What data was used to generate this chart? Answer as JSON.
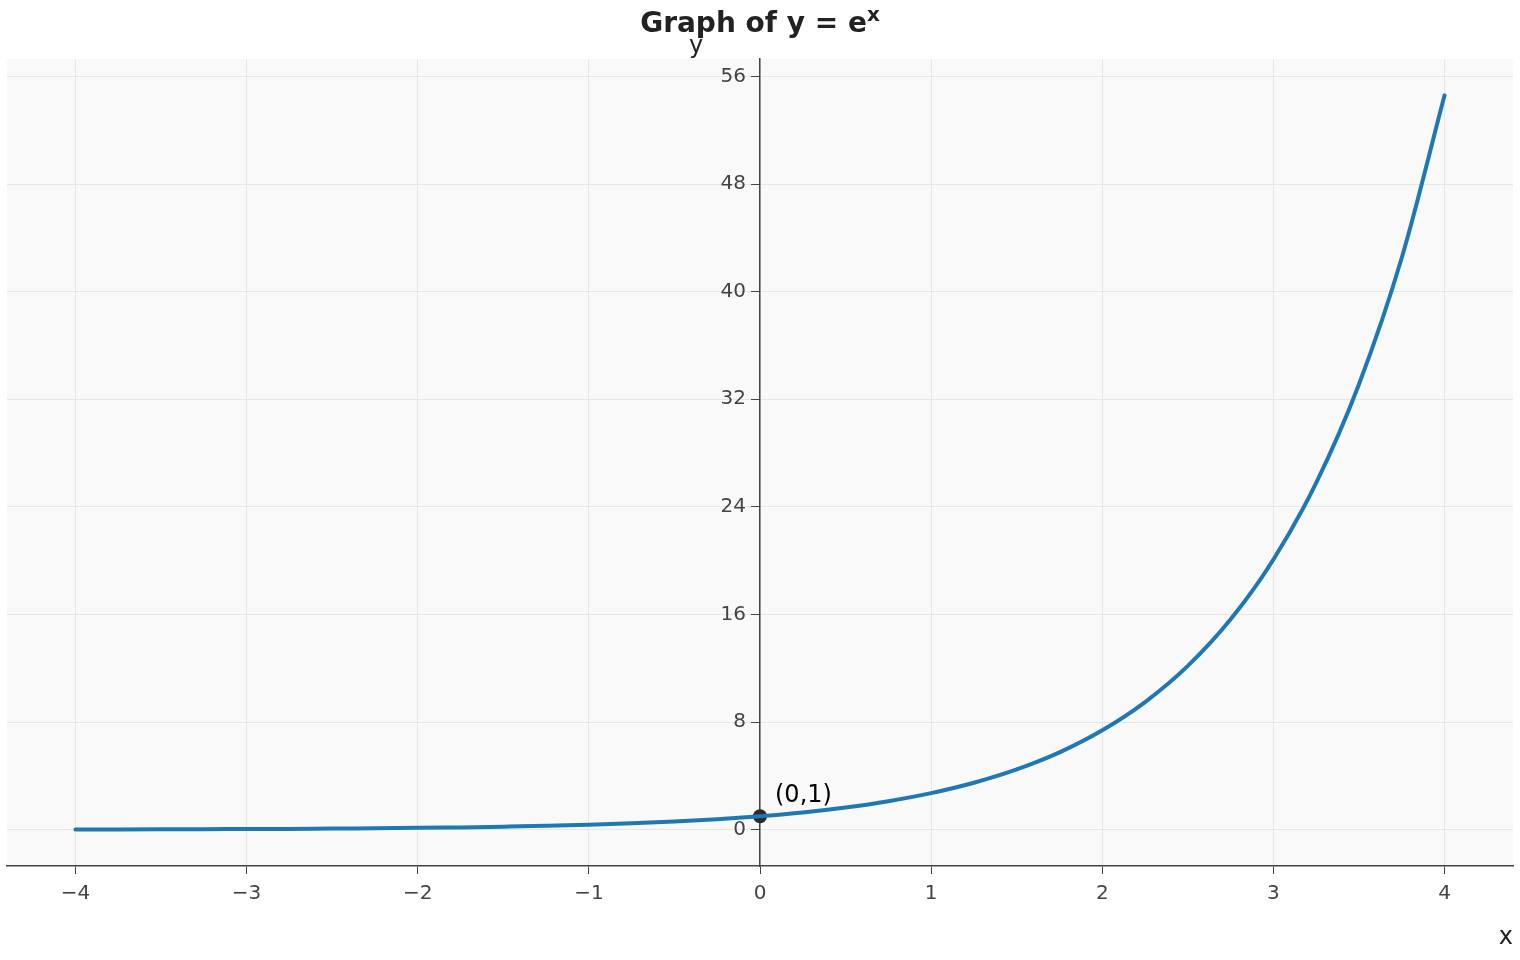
{
  "chart_data": {
    "type": "line",
    "title": "Graph of y = e$^{x}$",
    "xlabel": "x",
    "ylabel": "y",
    "xlim": [
      -4.4,
      4.4
    ],
    "ylim": [
      -2.7,
      57.3
    ],
    "xticks": [
      {
        "value": -4,
        "label": "−4"
      },
      {
        "value": -3,
        "label": "−3"
      },
      {
        "value": -2,
        "label": "−2"
      },
      {
        "value": -1,
        "label": "−1"
      },
      0,
      1,
      2,
      3,
      4
    ],
    "yticks": [
      0,
      8,
      16,
      24,
      32,
      40,
      48,
      56
    ],
    "grid": true,
    "legend": false,
    "annotations": [
      {
        "text": "(0,1)",
        "x": 0,
        "y": 1
      }
    ],
    "series": [
      {
        "type": "line",
        "color": "#1f77b4",
        "marker": "none",
        "x": [
          -4,
          -3.75,
          -3.5,
          -3.25,
          -3,
          -2.75,
          -2.5,
          -2.25,
          -2,
          -1.75,
          -1.5,
          -1.25,
          -1,
          -0.75,
          -0.5,
          -0.25,
          0,
          0.25,
          0.5,
          0.75,
          1,
          1.25,
          1.5,
          1.75,
          2,
          2.25,
          2.5,
          2.75,
          3,
          3.25,
          3.5,
          3.75,
          4
        ],
        "values": [
          0.02,
          0.02,
          0.03,
          0.04,
          0.05,
          0.06,
          0.08,
          0.11,
          0.14,
          0.17,
          0.22,
          0.29,
          0.37,
          0.47,
          0.61,
          0.78,
          1,
          1.28,
          1.65,
          2.12,
          2.72,
          3.49,
          4.48,
          5.75,
          7.39,
          9.49,
          12.18,
          15.64,
          20.09,
          25.79,
          33.12,
          42.52,
          54.6
        ]
      },
      {
        "type": "scatter",
        "color": "#2b2b2b",
        "marker": "circle",
        "x": [
          0
        ],
        "values": [
          1
        ]
      }
    ]
  }
}
